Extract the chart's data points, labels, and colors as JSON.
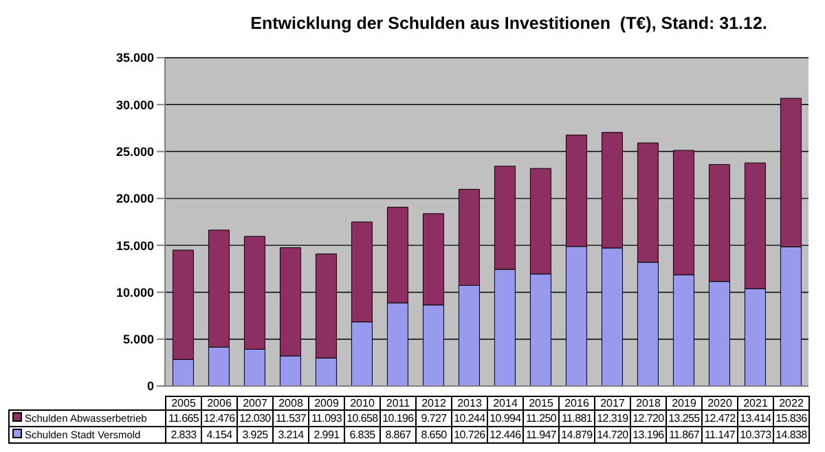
{
  "chart_data": {
    "type": "bar",
    "title": "Entwicklung der Schulden aus Investitionen  (T€), Stand: 31.12.",
    "categories": [
      "2005",
      "2006",
      "2007",
      "2008",
      "2009",
      "2010",
      "2011",
      "2012",
      "2013",
      "2014",
      "2015",
      "2016",
      "2017",
      "2018",
      "2019",
      "2020",
      "2021",
      "2022"
    ],
    "series": [
      {
        "name": "Schulden Stadt Versmold",
        "color": "#9999ee",
        "values": [
          2833,
          4154,
          3925,
          3214,
          2991,
          6835,
          8867,
          8650,
          10726,
          12446,
          11947,
          14879,
          14720,
          13196,
          11867,
          11147,
          10373,
          14838
        ],
        "value_labels": [
          "2.833",
          "4.154",
          "3.925",
          "3.214",
          "2.991",
          "6.835",
          "8.867",
          "8.650",
          "10.726",
          "12.446",
          "11.947",
          "14.879",
          "14.720",
          "13.196",
          "11.867",
          "11.147",
          "10.373",
          "14.838"
        ]
      },
      {
        "name": "Schulden Abwasserbetrieb",
        "color": "#8e2f62",
        "values": [
          11665,
          12476,
          12030,
          11537,
          11093,
          10658,
          10196,
          9727,
          10244,
          10994,
          11250,
          11881,
          12319,
          12720,
          13255,
          12472,
          13414,
          15836
        ],
        "value_labels": [
          "11.665",
          "12.476",
          "12.030",
          "11.537",
          "11.093",
          "10.658",
          "10.196",
          "9.727",
          "10.244",
          "10.994",
          "11.250",
          "11.881",
          "12.319",
          "12.720",
          "13.255",
          "12.472",
          "13.414",
          "15.836"
        ]
      }
    ],
    "stacked": true,
    "ylim": [
      0,
      35000
    ],
    "yticks": [
      0,
      {
        "value": 5000,
        "label": "5.000"
      },
      {
        "value": 10000,
        "label": "10.000"
      },
      {
        "value": 15000,
        "label": "15.000"
      },
      {
        "value": 20000,
        "label": "20.000"
      },
      {
        "value": 25000,
        "label": "25.000"
      },
      {
        "value": 30000,
        "label": "30.000"
      },
      {
        "value": 35000,
        "label": "35.000"
      }
    ],
    "grid": "y",
    "legend": "bottom"
  }
}
